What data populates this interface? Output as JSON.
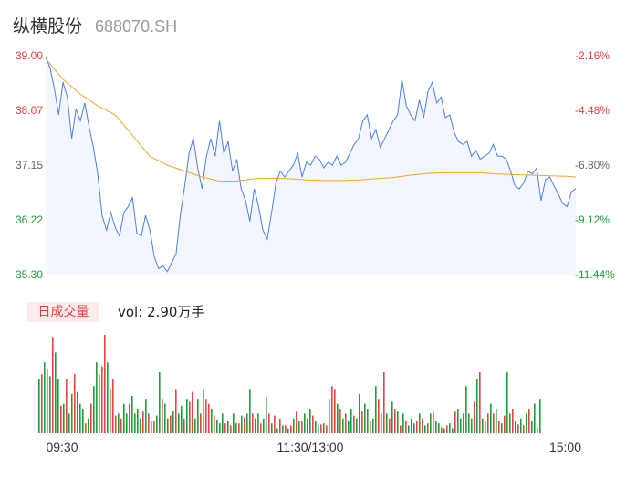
{
  "header": {
    "name": "纵横股份",
    "code": "688070.SH"
  },
  "colors": {
    "up": "#e84343",
    "down": "#1e9e3a",
    "price_line": "#4a7fe8",
    "avg_line": "#f5a623",
    "area_fill": "#f3f6fd",
    "axis_text": "#666666"
  },
  "chart_data": {
    "type": "line",
    "price_axis": {
      "ylim": [
        35.3,
        39.0
      ],
      "ticks": [
        "39.00",
        "38.07",
        "37.15",
        "36.22",
        "35.30"
      ]
    },
    "pct_axis": {
      "ticks": [
        "-2.16%",
        "-4.48%",
        "-6.80%",
        "-9.12%",
        "-11.44%"
      ]
    },
    "x_ticks": [
      "09:30",
      "11:30/13:00",
      "15:00"
    ],
    "series": [
      {
        "role": "price",
        "values": [
          38.98,
          38.8,
          38.45,
          38.0,
          38.55,
          38.3,
          37.6,
          38.1,
          37.9,
          38.2,
          37.8,
          37.45,
          37.0,
          36.3,
          36.05,
          36.35,
          36.1,
          35.95,
          36.35,
          36.45,
          36.6,
          36.0,
          35.95,
          36.3,
          36.05,
          35.6,
          35.4,
          35.45,
          35.35,
          35.5,
          35.65,
          36.3,
          36.8,
          37.35,
          37.6,
          37.1,
          36.75,
          37.3,
          37.6,
          37.3,
          37.9,
          37.35,
          37.55,
          37.05,
          37.25,
          36.75,
          36.55,
          36.2,
          36.75,
          36.45,
          36.05,
          35.9,
          36.35,
          36.85,
          37.05,
          36.95,
          37.05,
          37.15,
          37.35,
          36.95,
          37.2,
          37.15,
          37.3,
          37.25,
          37.1,
          37.2,
          37.15,
          37.3,
          37.15,
          37.2,
          37.35,
          37.5,
          37.6,
          37.9,
          38.0,
          37.6,
          37.75,
          37.45,
          37.6,
          37.75,
          37.9,
          38.0,
          38.6,
          38.15,
          38.0,
          37.9,
          38.25,
          37.95,
          38.4,
          38.55,
          38.2,
          38.3,
          37.95,
          38.0,
          37.7,
          37.55,
          37.5,
          37.55,
          37.3,
          37.4,
          37.25,
          37.3,
          37.35,
          37.5,
          37.3,
          37.3,
          37.25,
          37.05,
          36.8,
          36.75,
          36.85,
          37.05,
          37.0,
          37.1,
          36.55,
          36.9,
          36.95,
          36.8,
          36.65,
          36.5,
          36.45,
          36.7,
          36.75
        ],
        "sample_minutes": [
          0,
          2,
          4,
          6,
          8,
          10,
          12,
          14,
          16,
          18,
          20,
          22,
          24,
          26,
          28,
          30,
          32,
          34,
          36,
          38,
          40,
          42,
          44,
          46,
          48,
          50,
          52,
          54,
          56,
          58,
          60,
          62,
          64,
          66,
          68,
          70,
          72,
          74,
          76,
          78,
          80,
          82,
          84,
          86,
          88,
          90,
          92,
          94,
          96,
          98,
          100,
          102,
          104,
          106,
          108,
          110,
          112,
          114,
          116,
          118,
          120,
          122,
          124,
          126,
          128,
          130,
          132,
          134,
          136,
          138,
          140,
          142,
          144,
          146,
          148,
          150,
          152,
          154,
          156,
          158,
          160,
          162,
          164,
          166,
          168,
          170,
          172,
          174,
          176,
          178,
          180,
          182,
          184,
          186,
          188,
          190,
          192,
          194,
          196,
          198,
          200,
          202,
          204,
          206,
          208,
          210,
          212,
          214,
          216,
          218,
          220,
          222,
          224,
          226,
          228,
          230,
          232,
          234,
          236,
          238,
          240,
          242,
          244
        ]
      },
      {
        "role": "average",
        "values": [
          38.95,
          38.6,
          38.35,
          38.15,
          38.0,
          37.65,
          37.3,
          37.15,
          37.05,
          36.95,
          36.88,
          36.88,
          36.92,
          36.93,
          36.92,
          36.9,
          36.89,
          36.89,
          36.9,
          36.92,
          36.94,
          36.98,
          37.01,
          37.02,
          37.02,
          37.02,
          37.0,
          36.99,
          36.98,
          36.97,
          36.96,
          36.95
        ],
        "sample_minutes": [
          0,
          8,
          16,
          24,
          32,
          40,
          48,
          56,
          64,
          72,
          80,
          88,
          96,
          104,
          112,
          120,
          128,
          136,
          144,
          152,
          160,
          168,
          176,
          184,
          192,
          200,
          208,
          216,
          224,
          232,
          240,
          244
        ]
      }
    ],
    "volume": {
      "label": "日成交量",
      "summary": "vol: 2.90万手",
      "bars": [
        [
          0.55,
          1
        ],
        [
          0.6,
          0
        ],
        [
          0.72,
          1
        ],
        [
          0.65,
          0
        ],
        [
          0.58,
          1
        ],
        [
          0.98,
          0
        ],
        [
          0.82,
          1
        ],
        [
          0.55,
          1
        ],
        [
          0.28,
          0
        ],
        [
          0.3,
          1
        ],
        [
          0.55,
          0
        ],
        [
          0.2,
          1
        ],
        [
          0.4,
          1
        ],
        [
          0.6,
          0
        ],
        [
          0.42,
          1
        ],
        [
          0.3,
          1
        ],
        [
          0.25,
          1
        ],
        [
          0.1,
          0
        ],
        [
          0.15,
          1
        ],
        [
          0.3,
          0
        ],
        [
          0.48,
          1
        ],
        [
          0.72,
          1
        ],
        [
          0.6,
          1
        ],
        [
          0.68,
          0
        ],
        [
          1.0,
          0
        ],
        [
          0.72,
          1
        ],
        [
          0.45,
          0
        ],
        [
          0.55,
          0
        ],
        [
          0.18,
          0
        ],
        [
          0.2,
          1
        ],
        [
          0.15,
          0
        ],
        [
          0.3,
          1
        ],
        [
          0.2,
          1
        ],
        [
          0.3,
          0
        ],
        [
          0.38,
          1
        ],
        [
          0.2,
          1
        ],
        [
          0.25,
          1
        ],
        [
          0.15,
          1
        ],
        [
          0.22,
          0
        ],
        [
          0.35,
          1
        ],
        [
          0.2,
          0
        ],
        [
          0.12,
          0
        ],
        [
          0.13,
          0
        ],
        [
          0.18,
          1
        ],
        [
          0.62,
          1
        ],
        [
          0.35,
          0
        ],
        [
          0.3,
          1
        ],
        [
          0.15,
          1
        ],
        [
          0.18,
          0
        ],
        [
          0.22,
          1
        ],
        [
          0.45,
          0
        ],
        [
          0.2,
          1
        ],
        [
          0.28,
          1
        ],
        [
          0.15,
          0
        ],
        [
          0.35,
          1
        ],
        [
          0.32,
          0
        ],
        [
          0.42,
          0
        ],
        [
          0.15,
          1
        ],
        [
          0.35,
          1
        ],
        [
          0.2,
          0
        ],
        [
          0.45,
          1
        ],
        [
          0.35,
          0
        ],
        [
          0.3,
          0
        ],
        [
          0.25,
          1
        ],
        [
          0.18,
          0
        ],
        [
          0.14,
          1
        ],
        [
          0.1,
          1
        ],
        [
          0.2,
          1
        ],
        [
          0.1,
          0
        ],
        [
          0.13,
          1
        ],
        [
          0.08,
          0
        ],
        [
          0.2,
          1
        ],
        [
          0.1,
          1
        ],
        [
          0.1,
          0
        ],
        [
          0.18,
          1
        ],
        [
          0.16,
          0
        ],
        [
          0.2,
          1
        ],
        [
          0.45,
          1
        ],
        [
          0.2,
          0
        ],
        [
          0.15,
          1
        ],
        [
          0.2,
          1
        ],
        [
          0.1,
          0
        ],
        [
          0.15,
          1
        ],
        [
          0.37,
          1
        ],
        [
          0.2,
          0
        ],
        [
          0.1,
          1
        ],
        [
          0.18,
          0
        ],
        [
          0.05,
          1
        ],
        [
          0.15,
          0
        ],
        [
          0.08,
          1
        ],
        [
          0.08,
          0
        ],
        [
          0.05,
          1
        ],
        [
          0.08,
          0
        ],
        [
          0.15,
          1
        ],
        [
          0.22,
          0
        ],
        [
          0.12,
          1
        ],
        [
          0.12,
          0
        ],
        [
          0.2,
          1
        ],
        [
          0.15,
          0
        ],
        [
          0.25,
          1
        ],
        [
          0.18,
          0
        ],
        [
          0.12,
          1
        ],
        [
          0.08,
          1
        ],
        [
          0.09,
          0
        ],
        [
          0.1,
          1
        ],
        [
          0.08,
          0
        ],
        [
          0.35,
          1
        ],
        [
          0.48,
          0
        ],
        [
          0.45,
          0
        ],
        [
          0.3,
          1
        ],
        [
          0.25,
          0
        ],
        [
          0.15,
          1
        ],
        [
          0.2,
          0
        ],
        [
          0.12,
          1
        ],
        [
          0.25,
          1
        ],
        [
          0.18,
          0
        ],
        [
          0.15,
          1
        ],
        [
          0.4,
          1
        ],
        [
          0.22,
          0
        ],
        [
          0.3,
          1
        ],
        [
          0.25,
          1
        ],
        [
          0.12,
          0
        ],
        [
          0.15,
          1
        ],
        [
          0.48,
          1
        ],
        [
          0.35,
          0
        ],
        [
          0.2,
          1
        ],
        [
          0.62,
          0
        ],
        [
          0.2,
          1
        ],
        [
          0.15,
          0
        ],
        [
          0.32,
          1
        ],
        [
          0.25,
          0
        ],
        [
          0.22,
          1
        ],
        [
          0.08,
          0
        ],
        [
          0.2,
          1
        ],
        [
          0.12,
          0
        ],
        [
          0.08,
          1
        ],
        [
          0.15,
          0
        ],
        [
          0.1,
          1
        ],
        [
          0.12,
          0
        ],
        [
          0.2,
          1
        ],
        [
          0.15,
          0
        ],
        [
          0.08,
          1
        ],
        [
          0.1,
          0
        ],
        [
          0.2,
          1
        ],
        [
          0.22,
          0
        ],
        [
          0.12,
          1
        ],
        [
          0.1,
          1
        ],
        [
          0.06,
          0
        ],
        [
          0.05,
          1
        ],
        [
          0.08,
          0
        ],
        [
          0.1,
          1
        ],
        [
          0.05,
          1
        ],
        [
          0.22,
          0
        ],
        [
          0.25,
          1
        ],
        [
          0.15,
          1
        ],
        [
          0.2,
          0
        ],
        [
          0.48,
          1
        ],
        [
          0.2,
          1
        ],
        [
          0.15,
          1
        ],
        [
          0.32,
          0
        ],
        [
          0.55,
          1
        ],
        [
          0.62,
          0
        ],
        [
          0.15,
          1
        ],
        [
          0.12,
          1
        ],
        [
          0.2,
          0
        ],
        [
          0.3,
          1
        ],
        [
          0.2,
          0
        ],
        [
          0.25,
          1
        ],
        [
          0.12,
          0
        ],
        [
          0.1,
          1
        ],
        [
          0.18,
          0
        ],
        [
          0.62,
          1
        ],
        [
          0.2,
          1
        ],
        [
          0.25,
          0
        ],
        [
          0.12,
          1
        ],
        [
          0.09,
          0
        ],
        [
          0.15,
          1
        ],
        [
          0.08,
          0
        ],
        [
          0.2,
          1
        ],
        [
          0.25,
          0
        ],
        [
          0.12,
          1
        ],
        [
          0.3,
          1
        ],
        [
          0.05,
          0
        ],
        [
          0.35,
          1
        ]
      ]
    }
  }
}
